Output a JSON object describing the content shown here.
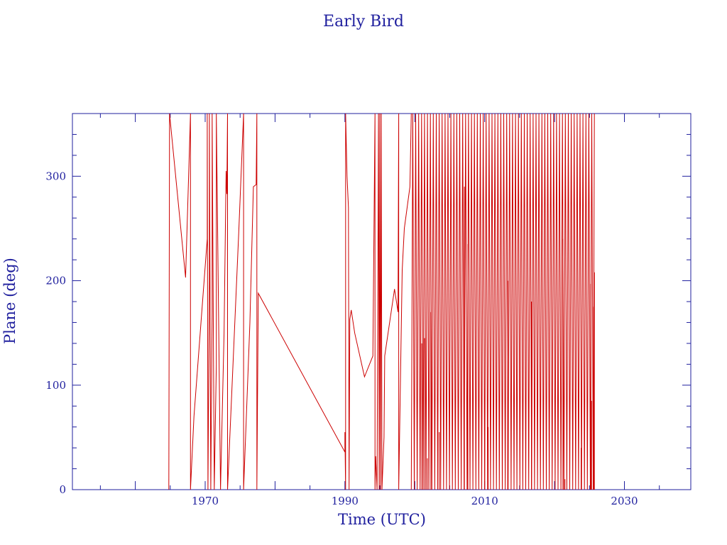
{
  "chart_data": {
    "type": "line",
    "title": "Early Bird",
    "xlabel": "Time (UTC)",
    "ylabel": "Plane (deg)",
    "xlim": [
      1951,
      2039.5
    ],
    "ylim": [
      0,
      360
    ],
    "x_ticks": [
      1970,
      1990,
      2010,
      2030
    ],
    "y_ticks": [
      0,
      100,
      200,
      300
    ],
    "grid": false,
    "colors": {
      "axis": "#1f1f9e",
      "series": "#cc0000"
    },
    "series": [
      {
        "values": [
          [
            1964.8,
            10
          ],
          [
            1964.8,
            0
          ],
          [
            1964.9,
            360
          ],
          [
            1967.2,
            203
          ],
          [
            1967.9,
            360
          ],
          [
            1967.9,
            0
          ],
          [
            1968.4,
            70
          ],
          [
            1970.3,
            240
          ],
          [
            1970.3,
            360
          ],
          [
            1970.4,
            0
          ],
          [
            1970.6,
            200
          ],
          [
            1970.6,
            360
          ],
          [
            1970.8,
            0
          ],
          [
            1971.0,
            170
          ],
          [
            1971.0,
            360
          ],
          [
            1971.3,
            0
          ],
          [
            1971.6,
            120
          ],
          [
            1971.6,
            360
          ],
          [
            1972.2,
            0
          ],
          [
            1972.7,
            150
          ],
          [
            1973.0,
            305
          ],
          [
            1973.1,
            283
          ],
          [
            1973.2,
            360
          ],
          [
            1973.2,
            0
          ],
          [
            1974.8,
            245
          ],
          [
            1975.5,
            360
          ],
          [
            1975.5,
            0
          ],
          [
            1976.4,
            160
          ],
          [
            1976.9,
            290
          ],
          [
            1977.3,
            292
          ],
          [
            1977.4,
            360
          ],
          [
            1977.4,
            0
          ],
          [
            1977.6,
            188
          ],
          [
            1990.0,
            36
          ],
          [
            1990.0,
            55
          ],
          [
            1990.1,
            0
          ],
          [
            1990.1,
            360
          ],
          [
            1990.3,
            300
          ],
          [
            1990.5,
            270
          ],
          [
            1990.6,
            0
          ],
          [
            1990.7,
            163
          ],
          [
            1990.9,
            172
          ],
          [
            1991.4,
            150
          ],
          [
            1992.8,
            108
          ],
          [
            1994.0,
            128
          ],
          [
            1994.3,
            360
          ],
          [
            1994.3,
            0
          ],
          [
            1994.4,
            32
          ],
          [
            1994.6,
            0
          ],
          [
            1994.8,
            360
          ],
          [
            1994.9,
            0
          ],
          [
            1995.0,
            360
          ],
          [
            1995.1,
            0
          ],
          [
            1995.2,
            360
          ],
          [
            1995.3,
            0
          ],
          [
            1995.6,
            50
          ],
          [
            1995.7,
            128
          ],
          [
            1997.1,
            192
          ],
          [
            1997.6,
            170
          ],
          [
            1997.7,
            360
          ],
          [
            1997.7,
            0
          ],
          [
            1998.2,
            210
          ],
          [
            1998.5,
            250
          ],
          [
            1999.3,
            290
          ],
          [
            1999.5,
            360
          ]
        ]
      },
      {
        "sweep_start": 1999.5,
        "sweep_end": 2025.7,
        "sweep_period_years": 0.42,
        "sweep_spikes": [
          [
            2001.0,
            140
          ],
          [
            2001.4,
            145
          ],
          [
            2001.8,
            30
          ],
          [
            2002.3,
            170
          ],
          [
            2003.5,
            55
          ],
          [
            2007.1,
            290
          ],
          [
            2007.6,
            235
          ],
          [
            2010.0,
            70
          ],
          [
            2010.5,
            60
          ],
          [
            2013.3,
            200
          ],
          [
            2016.7,
            180
          ],
          [
            2021.2,
            240
          ],
          [
            2021.5,
            10
          ],
          [
            2023.8,
            40
          ],
          [
            2025.2,
            197
          ],
          [
            2025.3,
            85
          ],
          [
            2025.6,
            175
          ],
          [
            2025.7,
            208
          ]
        ]
      }
    ]
  }
}
